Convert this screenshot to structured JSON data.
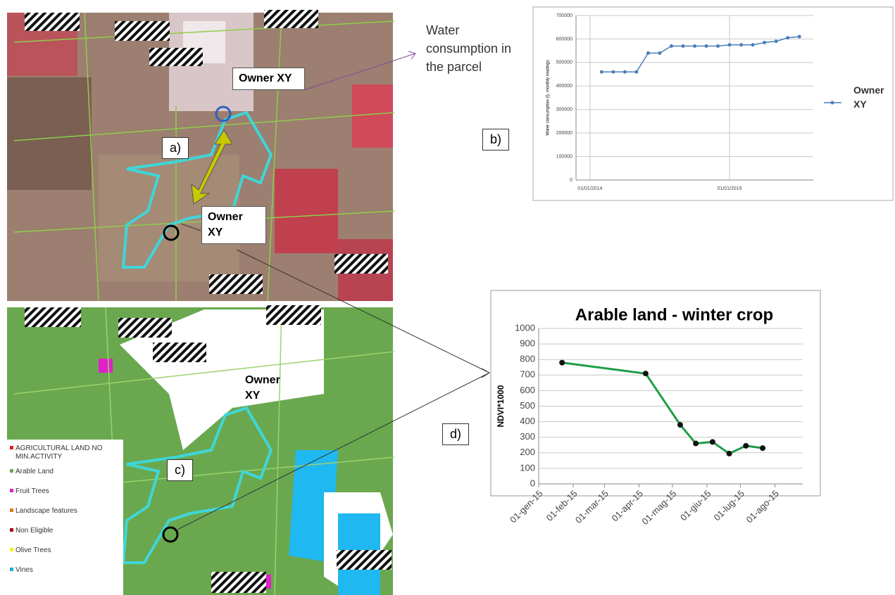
{
  "chart_data": [
    {
      "type": "line",
      "y_label": "Water consumption (l), monthly readings",
      "series": [
        {
          "name": "Owner XY",
          "color": "#4a7ebb",
          "x": [
            1,
            2,
            3,
            4,
            5,
            6,
            7,
            8,
            9,
            10,
            11,
            12,
            13,
            14,
            15,
            16,
            17,
            18
          ],
          "values": [
            460000,
            460000,
            460000,
            460000,
            540000,
            540000,
            570000,
            570000,
            570000,
            570000,
            570000,
            575000,
            575000,
            575000,
            585000,
            590000,
            605000,
            610000
          ]
        }
      ],
      "xlim": [
        -1.2,
        19.2
      ],
      "xticks": [
        {
          "value": 0,
          "label": "01/01/2014"
        },
        {
          "value": 12,
          "label": "01/01/2015"
        }
      ],
      "ylim": [
        0,
        700000
      ],
      "yticks": [
        0,
        100000,
        200000,
        300000,
        400000,
        500000,
        600000,
        700000
      ],
      "grid": true,
      "legend": "right"
    },
    {
      "type": "line",
      "title": "Arable land - winter crop",
      "y_label": "NDVI*1000",
      "series": [
        {
          "name": null,
          "color": "#1e9e46",
          "x": [
            21,
            96,
            127,
            141,
            156,
            171,
            186,
            201
          ],
          "values": [
            780,
            710,
            380,
            260,
            270,
            195,
            245,
            230
          ]
        }
      ],
      "xlim": [
        0,
        237
      ],
      "xticks": [
        {
          "value": 0,
          "label": "01-gen-15"
        },
        {
          "value": 31,
          "label": "01-feb-15"
        },
        {
          "value": 59,
          "label": "01-mar-15"
        },
        {
          "value": 90,
          "label": "01-apr-15"
        },
        {
          "value": 120,
          "label": "01-mag-15"
        },
        {
          "value": 151,
          "label": "01-giu-15"
        },
        {
          "value": 181,
          "label": "01-lug-15"
        },
        {
          "value": 212,
          "label": "01-ago-15"
        }
      ],
      "ylim": [
        0,
        1000
      ],
      "yticks": [
        0,
        100,
        200,
        300,
        400,
        500,
        600,
        700,
        800,
        900,
        1000
      ],
      "grid": true
    }
  ],
  "annotations": {
    "water": "Water consumption in the parcel",
    "panel_a": "a)",
    "panel_b": "b)",
    "panel_c": "c)",
    "panel_d": "d)",
    "owner_a1": "Owner XY",
    "owner_a2": "Owner XY",
    "owner_c": "Owner XY"
  },
  "map_legend": [
    {
      "label": "AGRICULTURAL LAND NO MIN.ACTIVITY",
      "color": "#e0221e"
    },
    {
      "label": "Arable Land",
      "color": "#6aa84f"
    },
    {
      "label": "Fruit Trees",
      "color": "#e020c8"
    },
    {
      "label": "Landscape features",
      "color": "#e07a1e"
    },
    {
      "label": "Non Eligible",
      "color": "#a01010"
    },
    {
      "label": "Olive Trees",
      "color": "#f0f020"
    },
    {
      "label": "Vines",
      "color": "#20a8e0"
    }
  ]
}
